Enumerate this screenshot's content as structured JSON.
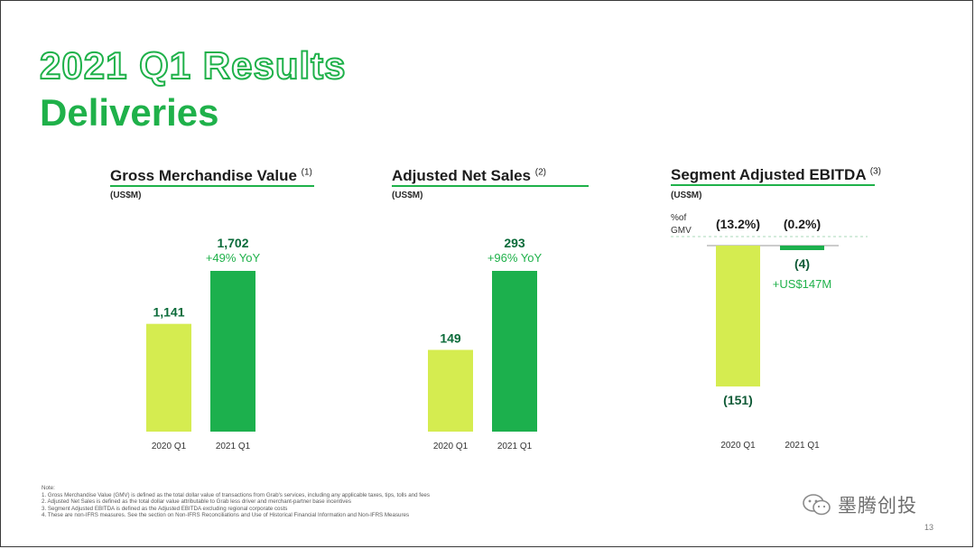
{
  "slide": {
    "title_line1": "2021 Q1 Results",
    "title_line2": "Deliveries",
    "page_number": "13",
    "notes": [
      "Note:",
      "1. Gross Merchandise Value (GMV) is defined as the total dollar value of transactions from Grab's services, including any applicable taxes, tips, tolls and fees",
      "2. Adjusted Net Sales is defined as the total dollar value attributable to Grab less driver and merchant-partner base incentives",
      "3. Segment Adjusted EBITDA is defined as the Adjusted EBITDA excluding regional corporate costs",
      "4. These are non-IFRS measures. See the section on Non-IFRS Reconciliations and Use of Historical Financial Information and Non-IFRS Measures"
    ],
    "watermark": "墨腾创投"
  },
  "colors": {
    "brand_green": "#1fb14a",
    "light_green": "#d5ec50",
    "dark_green": "#1cb04d"
  },
  "chart_data": [
    {
      "type": "bar",
      "title": "Gross Merchandise Value",
      "title_note": "(1)",
      "unit": "(US$M)",
      "categories": [
        "2020 Q1",
        "2021 Q1"
      ],
      "values": [
        1141,
        1702
      ],
      "value_labels": [
        "1,141",
        "1,702"
      ],
      "annotation": "+49% YoY",
      "ylim": [
        0,
        1702
      ]
    },
    {
      "type": "bar",
      "title": "Adjusted Net Sales",
      "title_note": "(2)",
      "unit": "(US$M)",
      "categories": [
        "2020 Q1",
        "2021 Q1"
      ],
      "values": [
        149,
        293
      ],
      "value_labels": [
        "149",
        "293"
      ],
      "annotation": "+96% YoY",
      "ylim": [
        0,
        293
      ]
    },
    {
      "type": "bar",
      "title": "Segment Adjusted EBITDA",
      "title_note": "(3)",
      "unit": "(US$M)",
      "categories": [
        "2020 Q1",
        "2021 Q1"
      ],
      "values": [
        -151,
        -4
      ],
      "value_labels": [
        "(151)",
        "(4)"
      ],
      "pct_of_gmv_label": "%of GMV",
      "pct_of_gmv": [
        "(13.2%)",
        "(0.2%)"
      ],
      "annotation": "+US$147M",
      "ylim": [
        -151,
        0
      ]
    }
  ]
}
